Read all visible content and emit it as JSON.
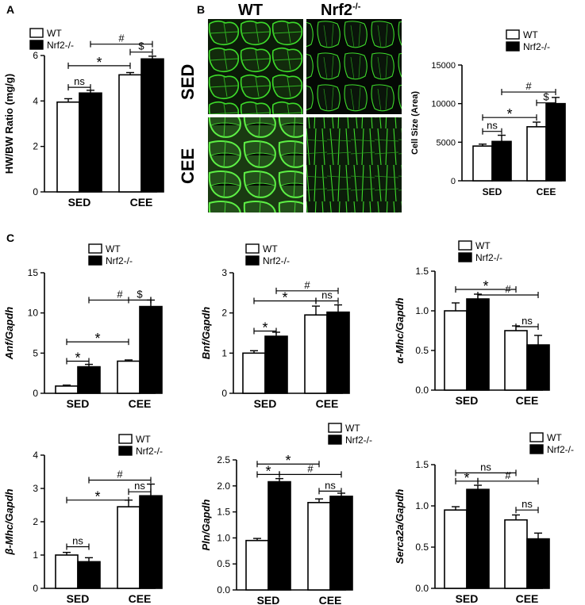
{
  "panels": {
    "A": "A",
    "B": "B",
    "C": "C"
  },
  "micrograph": {
    "col_labels": [
      "WT",
      "Nrf2"
    ],
    "col2_superscript": "-/-",
    "row_labels": [
      "SED",
      "CEE"
    ],
    "stain_color": "#3ddc2a"
  },
  "colors": {
    "wt_fill": "#ffffff",
    "ko_fill": "#000000",
    "stroke": "#000000"
  },
  "chart_data": [
    {
      "id": "hwbw",
      "type": "bar",
      "ylabel": "HW/BW Ratio (mg/g)",
      "categories": [
        "SED",
        "CEE"
      ],
      "ylim": [
        0,
        6
      ],
      "yticks": [
        0,
        2,
        4,
        6
      ],
      "legend": [
        "WT",
        "Nrf2-/-"
      ],
      "series": [
        {
          "name": "WT",
          "values": [
            3.95,
            5.15
          ],
          "errors": [
            0.15,
            0.1
          ]
        },
        {
          "name": "Nrf2-/-",
          "values": [
            4.35,
            5.85
          ],
          "errors": [
            0.12,
            0.12
          ]
        }
      ],
      "annotations": [
        {
          "text": "#",
          "from": [
            0,
            1
          ],
          "to": [
            1,
            1
          ],
          "y": 6.5
        },
        {
          "text": "$",
          "from": [
            1,
            0
          ],
          "to": [
            1,
            1
          ],
          "y": 6.15
        },
        {
          "text": "*",
          "from": [
            0,
            0
          ],
          "to": [
            1,
            0
          ],
          "y": 5.55
        },
        {
          "text": "ns",
          "from": [
            0,
            0
          ],
          "to": [
            0,
            1
          ],
          "y": 4.6
        }
      ]
    },
    {
      "id": "cellsize",
      "type": "bar",
      "ylabel": "Cell Size (Area)",
      "categories": [
        "SED",
        "CEE"
      ],
      "ylim": [
        0,
        15000
      ],
      "yticks": [
        0,
        5000,
        10000,
        15000
      ],
      "legend": [
        "WT",
        "Nrf2-/-"
      ],
      "series": [
        {
          "name": "WT",
          "values": [
            4500,
            7000
          ],
          "errors": [
            250,
            600
          ]
        },
        {
          "name": "Nrf2-/-",
          "values": [
            5100,
            10000
          ],
          "errors": [
            800,
            800
          ]
        }
      ],
      "annotations": [
        {
          "text": "#",
          "from": [
            0,
            1
          ],
          "to": [
            1,
            1
          ],
          "y": 11500
        },
        {
          "text": "$",
          "from": [
            1,
            0
          ],
          "to": [
            1,
            1
          ],
          "y": 10100
        },
        {
          "text": "*",
          "from": [
            0,
            0
          ],
          "to": [
            1,
            0
          ],
          "y": 8200
        },
        {
          "text": "ns",
          "from": [
            0,
            0
          ],
          "to": [
            0,
            1
          ],
          "y": 6400
        }
      ]
    },
    {
      "id": "anf",
      "type": "bar",
      "ylabel": "Anf/Gapdh",
      "categories": [
        "SED",
        "CEE"
      ],
      "ylim": [
        0,
        15
      ],
      "yticks": [
        0,
        5,
        10,
        15
      ],
      "legend": [
        "WT",
        "Nrf2-/-"
      ],
      "series": [
        {
          "name": "WT",
          "values": [
            0.9,
            4.0
          ],
          "errors": [
            0.12,
            0.15
          ]
        },
        {
          "name": "Nrf2-/-",
          "values": [
            3.3,
            10.8
          ],
          "errors": [
            0.3,
            0.8
          ]
        }
      ],
      "annotations": [
        {
          "text": "#",
          "from": [
            0,
            1
          ],
          "to": [
            1,
            1
          ],
          "y": 11.6
        },
        {
          "text": "$",
          "from": [
            1,
            0
          ],
          "to": [
            1,
            1
          ],
          "y": 11.6
        },
        {
          "text": "*",
          "from": [
            0,
            0
          ],
          "to": [
            1,
            0
          ],
          "y": 6.4
        },
        {
          "text": "*",
          "from": [
            0,
            0
          ],
          "to": [
            0,
            1
          ],
          "y": 4.0
        }
      ]
    },
    {
      "id": "bnf",
      "type": "bar",
      "ylabel": "Bnf/Gapdh",
      "categories": [
        "SED",
        "CEE"
      ],
      "ylim": [
        0,
        3
      ],
      "yticks": [
        0,
        1,
        2,
        3
      ],
      "legend": [
        "WT",
        "Nrf2-/-"
      ],
      "series": [
        {
          "name": "WT",
          "values": [
            1.0,
            1.95
          ],
          "errors": [
            0.06,
            0.22
          ]
        },
        {
          "name": "Nrf2-/-",
          "values": [
            1.42,
            2.02
          ],
          "errors": [
            0.1,
            0.18
          ]
        }
      ],
      "annotations": [
        {
          "text": "#",
          "from": [
            0,
            1
          ],
          "to": [
            1,
            1
          ],
          "y": 2.55
        },
        {
          "text": "ns",
          "from": [
            1,
            0
          ],
          "to": [
            1,
            1
          ],
          "y": 2.3
        },
        {
          "text": "*",
          "from": [
            0,
            0
          ],
          "to": [
            1,
            0
          ],
          "y": 2.3
        },
        {
          "text": "*",
          "from": [
            0,
            0
          ],
          "to": [
            0,
            1
          ],
          "y": 1.55
        }
      ]
    },
    {
      "id": "amhc",
      "type": "bar",
      "ylabel": "α-Mhc/Gapdh",
      "categories": [
        "SED",
        "CEE"
      ],
      "ylim": [
        0,
        1.5
      ],
      "yticks": [
        0.0,
        0.5,
        1.0,
        1.5
      ],
      "legend": [
        "WT",
        "Nrf2-/-"
      ],
      "series": [
        {
          "name": "WT",
          "values": [
            1.0,
            0.75
          ],
          "errors": [
            0.1,
            0.06
          ]
        },
        {
          "name": "Nrf2-/-",
          "values": [
            1.15,
            0.57
          ],
          "errors": [
            0.06,
            0.12
          ]
        }
      ],
      "annotations": [
        {
          "text": "*",
          "from": [
            0,
            0
          ],
          "to": [
            1,
            0
          ],
          "y": 1.27
        },
        {
          "text": "#",
          "from": [
            0,
            1
          ],
          "to": [
            1,
            1
          ],
          "y": 1.2
        },
        {
          "text": "ns",
          "from": [
            1,
            0
          ],
          "to": [
            1,
            1
          ],
          "y": 0.8
        }
      ]
    },
    {
      "id": "bmhc",
      "type": "bar",
      "ylabel": "β-Mhc/Gapdh",
      "categories": [
        "SED",
        "CEE"
      ],
      "ylim": [
        0,
        4
      ],
      "yticks": [
        0,
        1,
        2,
        3,
        4
      ],
      "legend": [
        "WT",
        "Nrf2-/-"
      ],
      "series": [
        {
          "name": "WT",
          "values": [
            1.0,
            2.45
          ],
          "errors": [
            0.08,
            0.2
          ]
        },
        {
          "name": "Nrf2-/-",
          "values": [
            0.8,
            2.78
          ],
          "errors": [
            0.12,
            0.35
          ]
        }
      ],
      "annotations": [
        {
          "text": "#",
          "from": [
            0,
            1
          ],
          "to": [
            1,
            1
          ],
          "y": 3.25
        },
        {
          "text": "ns",
          "from": [
            1,
            0
          ],
          "to": [
            1,
            1
          ],
          "y": 2.9
        },
        {
          "text": "*",
          "from": [
            0,
            0
          ],
          "to": [
            1,
            0
          ],
          "y": 2.65
        },
        {
          "text": "ns",
          "from": [
            0,
            0
          ],
          "to": [
            0,
            1
          ],
          "y": 1.25
        }
      ]
    },
    {
      "id": "pln",
      "type": "bar",
      "ylabel": "Pln/Gapdh",
      "categories": [
        "SED",
        "CEE"
      ],
      "ylim": [
        0,
        2.5
      ],
      "yticks": [
        0.0,
        0.5,
        1.0,
        1.5,
        2.0,
        2.5
      ],
      "legend": [
        "WT",
        "Nrf2-/-"
      ],
      "series": [
        {
          "name": "WT",
          "values": [
            0.95,
            1.68
          ],
          "errors": [
            0.04,
            0.07
          ]
        },
        {
          "name": "Nrf2-/-",
          "values": [
            2.08,
            1.8
          ],
          "errors": [
            0.06,
            0.06
          ]
        }
      ],
      "annotations": [
        {
          "text": "*",
          "from": [
            0,
            0
          ],
          "to": [
            1,
            0
          ],
          "y": 2.42
        },
        {
          "text": "*",
          "from": [
            0,
            0
          ],
          "to": [
            0,
            1
          ],
          "y": 2.22
        },
        {
          "text": "#",
          "from": [
            0,
            1
          ],
          "to": [
            1,
            1
          ],
          "y": 2.22
        },
        {
          "text": "ns",
          "from": [
            1,
            0
          ],
          "to": [
            1,
            1
          ],
          "y": 1.9
        }
      ]
    },
    {
      "id": "serca",
      "type": "bar",
      "ylabel": "Serca2a/Gapdh",
      "categories": [
        "SED",
        "CEE"
      ],
      "ylim": [
        0,
        1.5
      ],
      "yticks": [
        0.0,
        0.5,
        1.0,
        1.5
      ],
      "legend": [
        "WT",
        "Nrf2-/-"
      ],
      "series": [
        {
          "name": "WT",
          "values": [
            0.95,
            0.83
          ],
          "errors": [
            0.04,
            0.06
          ]
        },
        {
          "name": "Nrf2-/-",
          "values": [
            1.2,
            0.6
          ],
          "errors": [
            0.05,
            0.07
          ]
        }
      ],
      "annotations": [
        {
          "text": "ns",
          "from": [
            0,
            0
          ],
          "to": [
            1,
            0
          ],
          "y": 1.4
        },
        {
          "text": "*",
          "from": [
            0,
            0
          ],
          "to": [
            0,
            1
          ],
          "y": 1.3
        },
        {
          "text": "#",
          "from": [
            0,
            1
          ],
          "to": [
            1,
            1
          ],
          "y": 1.3
        },
        {
          "text": "ns",
          "from": [
            1,
            0
          ],
          "to": [
            1,
            1
          ],
          "y": 0.95
        }
      ]
    }
  ]
}
